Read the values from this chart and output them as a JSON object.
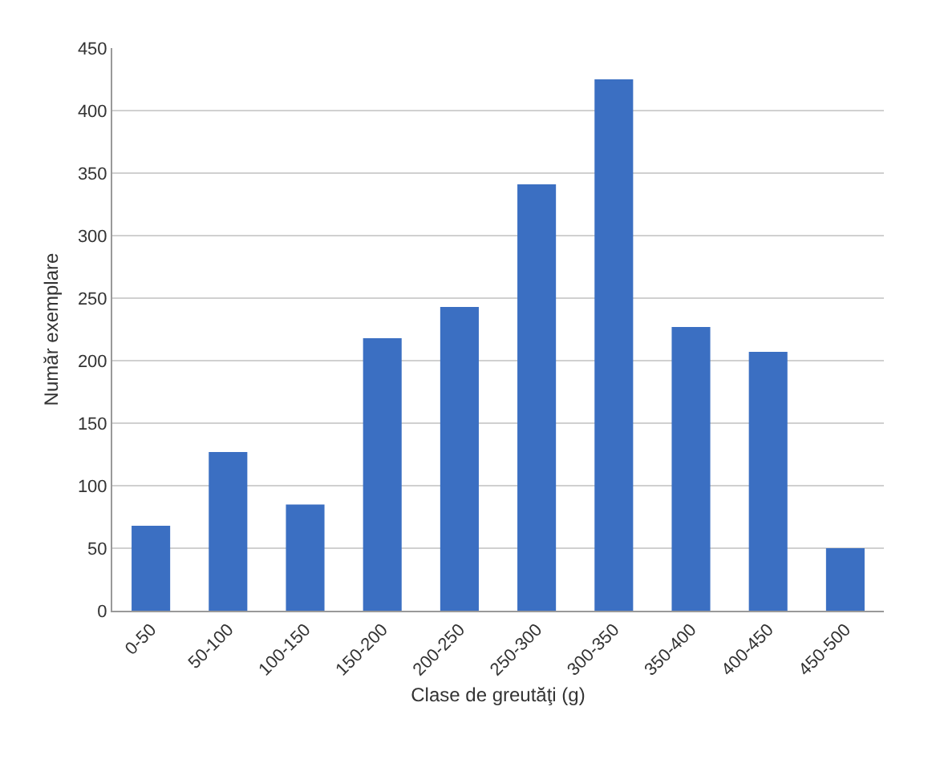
{
  "chart_data": {
    "type": "bar",
    "xlabel": "Clase de greutăţi (g)",
    "ylabel": "Număr exemplare",
    "categories": [
      "0-50",
      "50-100",
      "100-150",
      "150-200",
      "200-250",
      "250-300",
      "300-350",
      "350-400",
      "400-450",
      "450-500"
    ],
    "values": [
      68,
      127,
      85,
      218,
      243,
      341,
      425,
      227,
      207,
      50
    ],
    "color": "#3b6fc2",
    "ylim": [
      0,
      450
    ],
    "yticks": [
      0,
      50,
      100,
      150,
      200,
      250,
      300,
      350,
      400,
      450
    ],
    "grid": "y"
  }
}
